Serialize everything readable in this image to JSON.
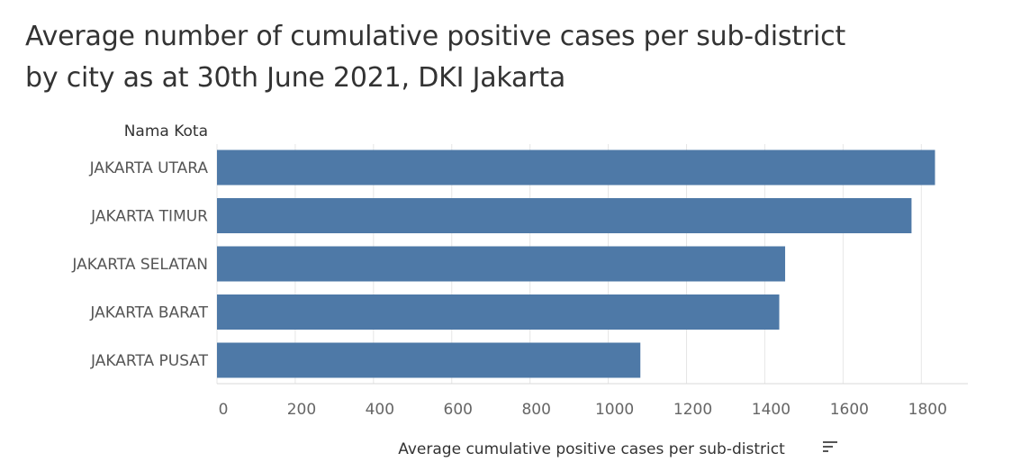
{
  "title": {
    "line1": "Average number of cumulative positive cases per sub-district",
    "line2": "by city as at 30th June 2021, DKI Jakarta"
  },
  "colors": {
    "bar": "#4e79a7",
    "grid": "#e6e6e6",
    "text": "#555555",
    "header": "#333333"
  },
  "icons": {
    "sort": "sort-descending-icon"
  },
  "chart_data": {
    "type": "bar",
    "orientation": "horizontal",
    "row_header": "Nama Kota",
    "categories": [
      "JAKARTA UTARA",
      "JAKARTA TIMUR",
      "JAKARTA SELATAN",
      "JAKARTA BARAT",
      "JAKARTA PUSAT"
    ],
    "values": [
      1835,
      1775,
      1452,
      1437,
      1082
    ],
    "xlabel": "Average cumulative positive cases per sub-district",
    "xlim": [
      0,
      1900
    ],
    "xticks": [
      0,
      200,
      400,
      600,
      800,
      1000,
      1200,
      1400,
      1600,
      1800
    ],
    "grid": "vertical"
  }
}
